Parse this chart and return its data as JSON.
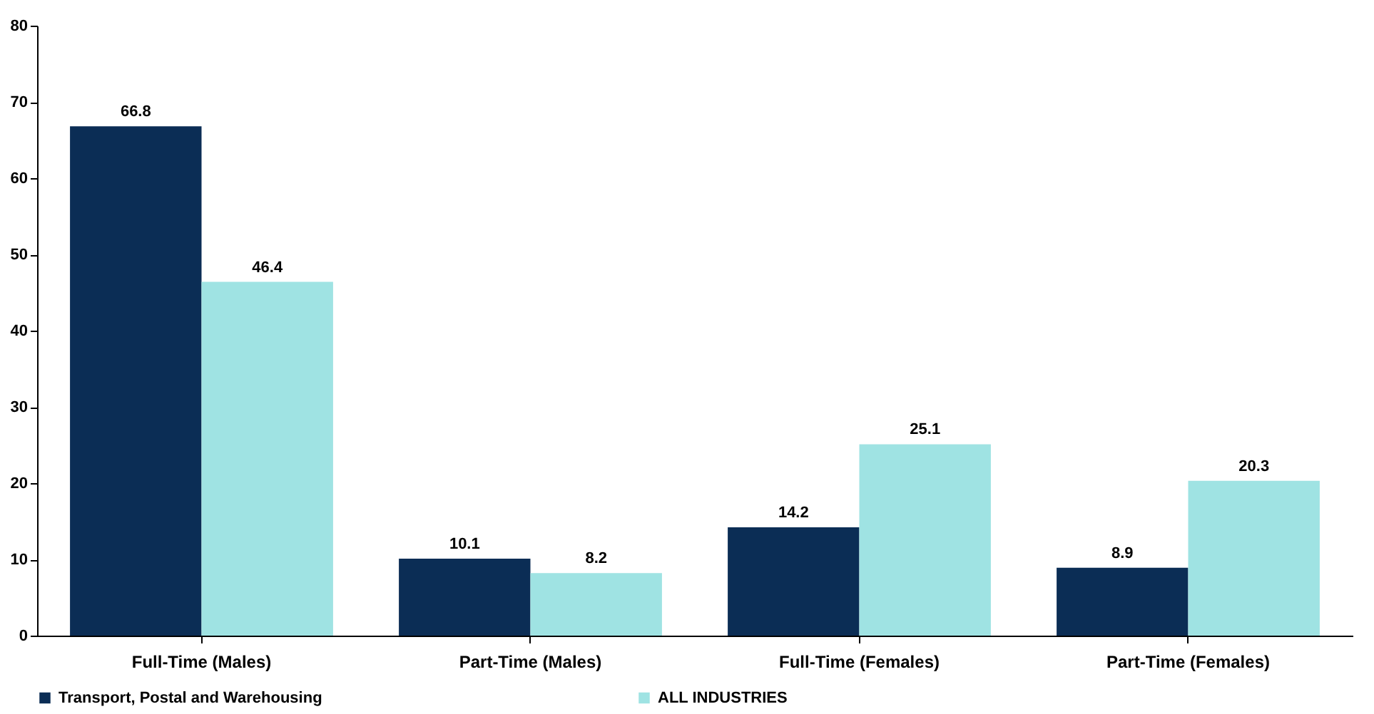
{
  "chart_data": {
    "type": "bar",
    "categories": [
      "Full-Time (Males)",
      "Part-Time (Males)",
      "Full-Time (Females)",
      "Part-Time (Females)"
    ],
    "series": [
      {
        "name": "Transport, Postal and Warehousing",
        "color": "#0b2d55",
        "values": [
          66.8,
          10.1,
          14.2,
          8.9
        ]
      },
      {
        "name": "ALL INDUSTRIES",
        "color": "#9fe3e3",
        "values": [
          46.4,
          8.2,
          25.1,
          20.3
        ]
      }
    ],
    "ylim": [
      0,
      80
    ],
    "yticks": [
      0,
      10,
      20,
      30,
      40,
      50,
      60,
      70,
      80
    ],
    "grid": false,
    "legend": "bottom",
    "data_labels": true
  }
}
